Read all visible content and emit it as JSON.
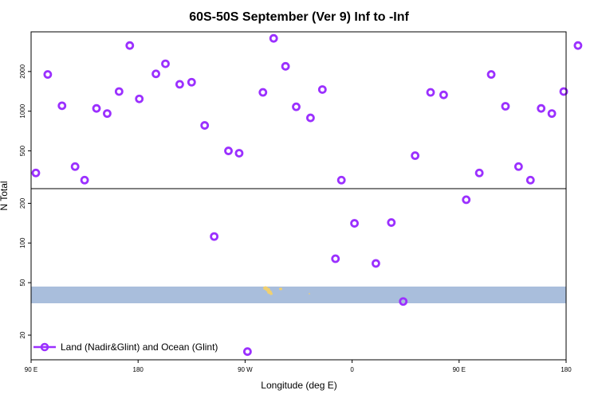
{
  "chart_data": {
    "type": "scatter",
    "title": "60S-50S September (Ver 9)   Inf to -Inf",
    "xlabel": "Longitude (deg E)",
    "ylabel": "N Total",
    "x_tick_labels": [
      "90 E",
      "180",
      "90 W",
      "0",
      "90 E",
      "180"
    ],
    "x_tick_values": [
      90,
      180,
      270,
      360,
      450,
      540
    ],
    "xlim": [
      90,
      540
    ],
    "y_scale": "log",
    "ylim": [
      13,
      4000
    ],
    "y_ticks": [
      20,
      50,
      100,
      200,
      500,
      1000,
      2000
    ],
    "y_tick_labels": [
      "20",
      "50",
      "100",
      "200",
      "500",
      "1000",
      "2000"
    ],
    "legend": {
      "label": "Land (Nadir&Glint) and Ocean (Glint)",
      "position": "bottom-left"
    },
    "colors": {
      "marker": "#9b30ff",
      "band": "#a9bedc",
      "land": "#f0d070"
    },
    "series": [
      {
        "name": "Land (Nadir&Glint) and Ocean (Glint)",
        "points": [
          [
            94,
            340
          ],
          [
            104,
            1900
          ],
          [
            116,
            1100
          ],
          [
            127,
            380
          ],
          [
            135,
            300
          ],
          [
            145,
            1050
          ],
          [
            154,
            960
          ],
          [
            164,
            1410
          ],
          [
            173,
            3150
          ],
          [
            181,
            1240
          ],
          [
            195,
            1920
          ],
          [
            203,
            2290
          ],
          [
            215,
            1600
          ],
          [
            225,
            1660
          ],
          [
            236,
            780
          ],
          [
            244,
            112
          ],
          [
            256,
            500
          ],
          [
            265,
            480
          ],
          [
            272,
            15
          ],
          [
            285,
            1390
          ],
          [
            294,
            3570
          ],
          [
            304,
            2190
          ],
          [
            313,
            1080
          ],
          [
            325,
            890
          ],
          [
            335,
            1460
          ],
          [
            346,
            76
          ],
          [
            351,
            300
          ],
          [
            362,
            141
          ],
          [
            380,
            70
          ],
          [
            393,
            143
          ],
          [
            403,
            36
          ],
          [
            413,
            460
          ],
          [
            426,
            1390
          ],
          [
            437,
            1330
          ],
          [
            456,
            213
          ],
          [
            467,
            340
          ],
          [
            477,
            1900
          ],
          [
            489,
            1090
          ],
          [
            500,
            380
          ],
          [
            510,
            300
          ],
          [
            519,
            1050
          ],
          [
            528,
            960
          ],
          [
            538,
            1410
          ],
          [
            550,
            3150
          ]
        ]
      }
    ]
  }
}
